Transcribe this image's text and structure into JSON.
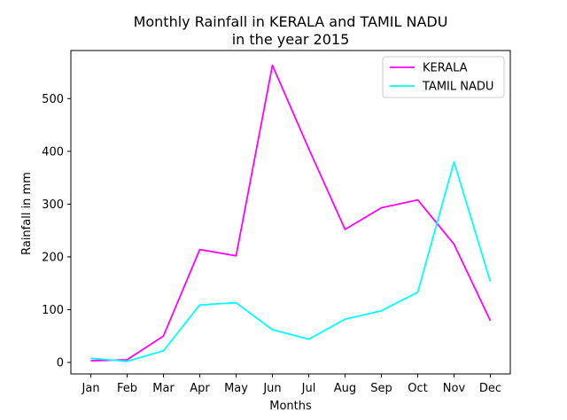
{
  "chart_data": {
    "type": "line",
    "title_line1": "Monthly Rainfall in KERALA and TAMIL NADU",
    "title_line2": "in the year 2015",
    "xlabel": "Months",
    "ylabel": "Rainfall in mm",
    "categories": [
      "Jan",
      "Feb",
      "Mar",
      "Apr",
      "May",
      "Jun",
      "Jul",
      "Aug",
      "Sep",
      "Oct",
      "Nov",
      "Dec"
    ],
    "yticks": [
      0,
      100,
      200,
      300,
      400,
      500
    ],
    "ylim": [
      -21.8,
      591.1
    ],
    "grid": false,
    "legend_position": "top-right",
    "series": [
      {
        "name": "KERALA",
        "color": "#ff00ff",
        "values": [
          3,
          5,
          50,
          214,
          202,
          563,
          405,
          252,
          293,
          308,
          224,
          79
        ]
      },
      {
        "name": "TAMIL NADU",
        "color": "#00ffff",
        "values": [
          8,
          2,
          22,
          109,
          113,
          62,
          44,
          82,
          98,
          133,
          380,
          153
        ]
      }
    ]
  }
}
